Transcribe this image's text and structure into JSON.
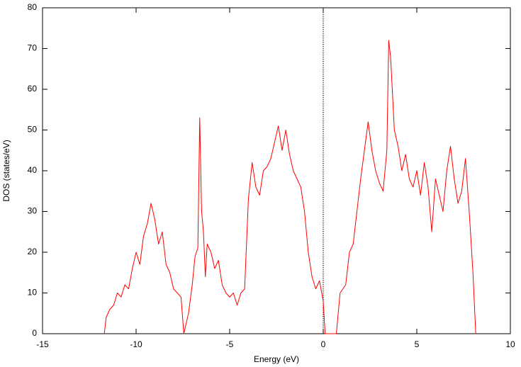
{
  "chart_data": {
    "type": "line",
    "x_label": "Energy (eV)",
    "y_label": "DOS (states/eV)",
    "x": [
      -11.7,
      -11.6,
      -11.4,
      -11.2,
      -11.0,
      -10.8,
      -10.6,
      -10.4,
      -10.2,
      -10.0,
      -9.8,
      -9.6,
      -9.4,
      -9.2,
      -9.0,
      -8.8,
      -8.6,
      -8.4,
      -8.2,
      -8.0,
      -7.8,
      -7.6,
      -7.45,
      -7.2,
      -7.0,
      -6.85,
      -6.7,
      -6.6,
      -6.5,
      -6.4,
      -6.3,
      -6.2,
      -6.0,
      -5.8,
      -5.6,
      -5.4,
      -5.2,
      -5.0,
      -4.8,
      -4.6,
      -4.4,
      -4.2,
      -4.0,
      -3.8,
      -3.6,
      -3.4,
      -3.2,
      -3.0,
      -2.8,
      -2.6,
      -2.4,
      -2.2,
      -2.0,
      -1.8,
      -1.6,
      -1.4,
      -1.2,
      -1.0,
      -0.8,
      -0.6,
      -0.4,
      -0.2,
      0.0,
      0.1,
      0.7,
      0.9,
      1.2,
      1.4,
      1.6,
      1.8,
      2.0,
      2.2,
      2.4,
      2.6,
      2.8,
      3.0,
      3.2,
      3.4,
      3.5,
      3.6,
      3.8,
      4.0,
      4.2,
      4.4,
      4.6,
      4.8,
      5.0,
      5.2,
      5.4,
      5.6,
      5.8,
      6.0,
      6.2,
      6.4,
      6.6,
      6.8,
      7.0,
      7.2,
      7.4,
      7.6,
      7.8,
      8.0,
      8.15
    ],
    "series": [
      {
        "color": "#ff0000",
        "values": [
          0,
          4,
          6,
          7,
          10,
          9,
          12,
          11,
          16,
          20,
          17,
          24,
          27,
          32,
          28,
          22,
          25,
          17,
          15,
          11,
          10,
          9,
          0,
          5,
          12,
          19,
          21,
          53,
          30,
          25,
          14,
          22,
          20,
          16,
          18,
          12,
          10,
          9,
          10,
          7,
          10,
          11,
          33,
          42,
          36,
          34,
          40,
          41,
          43,
          47,
          51,
          45,
          50,
          44,
          40,
          38,
          36,
          30,
          20,
          14,
          11,
          13,
          8,
          0,
          0,
          10,
          12,
          20,
          22,
          30,
          38,
          45,
          52,
          45,
          40,
          37,
          35,
          45,
          72,
          68,
          50,
          46,
          40,
          44,
          38,
          36,
          40,
          34,
          42,
          36,
          25,
          38,
          34,
          30,
          40,
          46,
          38,
          32,
          35,
          43,
          30,
          15,
          0
        ]
      }
    ],
    "xlim": [
      -15,
      10
    ],
    "xticks": [
      -15,
      -10,
      -5,
      0,
      5,
      10
    ],
    "ylim": [
      0,
      80
    ],
    "yticks": [
      0,
      10,
      20,
      30,
      40,
      50,
      60,
      70,
      80
    ],
    "vline": 0
  }
}
